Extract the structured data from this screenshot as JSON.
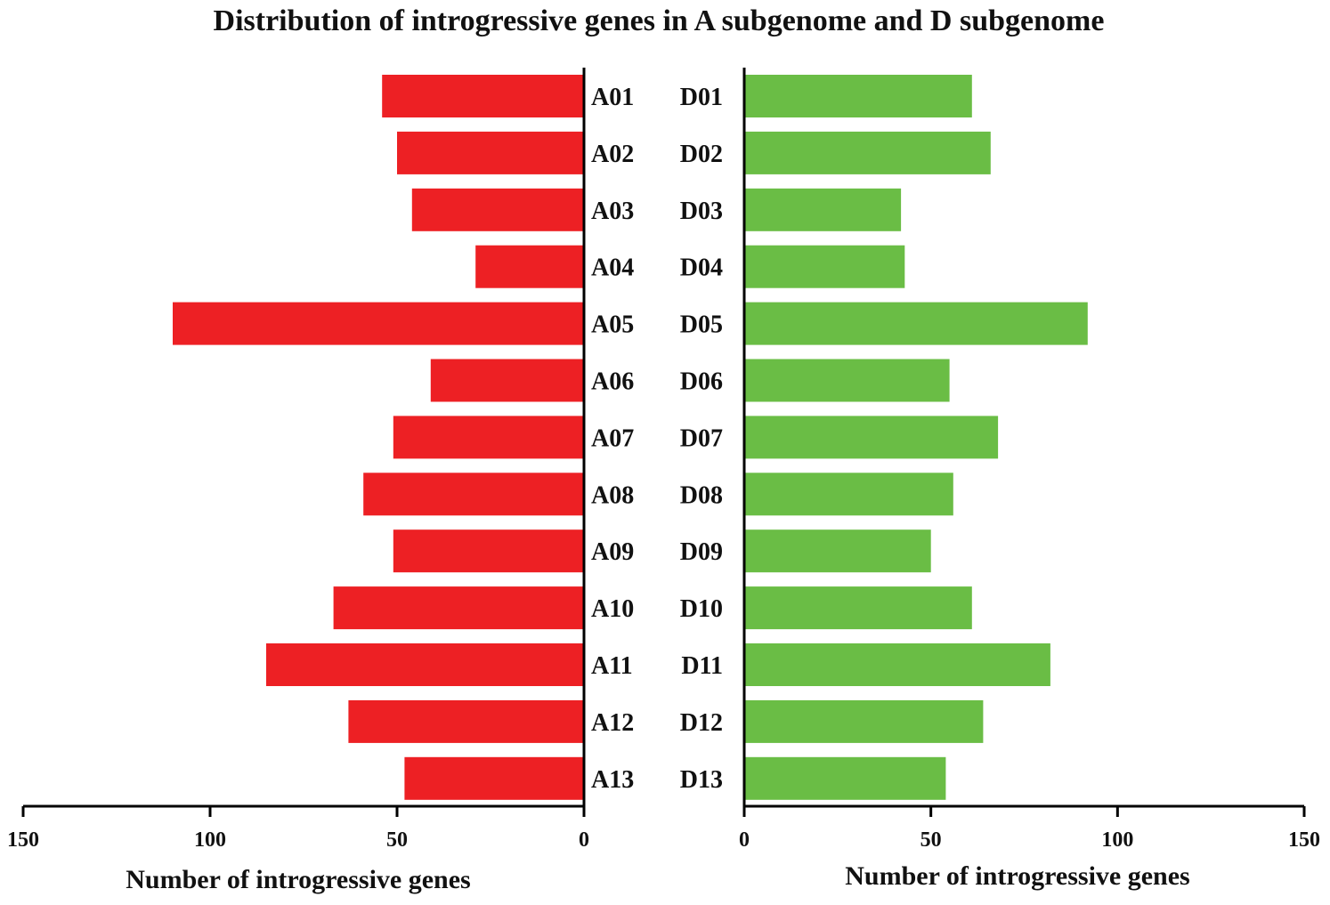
{
  "chart_data": [
    {
      "type": "bar",
      "orientation": "horizontal",
      "direction": "left",
      "title": "Distribution of introgressive genes in A subgenome and D subgenome",
      "categories": [
        "A01",
        "A02",
        "A03",
        "A04",
        "A05",
        "A06",
        "A07",
        "A08",
        "A09",
        "A10",
        "A11",
        "A12",
        "A13"
      ],
      "values": [
        54,
        50,
        46,
        29,
        110,
        41,
        51,
        59,
        51,
        67,
        85,
        63,
        48
      ],
      "xlabel": "Number of introgressive genes",
      "ylabel": "",
      "xlim": [
        0,
        150
      ],
      "ticks": [
        "150",
        "100",
        "50",
        "0"
      ],
      "color": "#ed2024",
      "grid": false
    },
    {
      "type": "bar",
      "orientation": "horizontal",
      "direction": "right",
      "categories": [
        "D01",
        "D02",
        "D03",
        "D04",
        "D05",
        "D06",
        "D07",
        "D08",
        "D09",
        "D10",
        "D11",
        "D12",
        "D13"
      ],
      "values": [
        61,
        66,
        42,
        43,
        92,
        55,
        68,
        56,
        50,
        61,
        82,
        64,
        54
      ],
      "xlabel": "Number of introgressive genes",
      "ylabel": "",
      "xlim": [
        0,
        150
      ],
      "ticks": [
        "0",
        "50",
        "100",
        "150"
      ],
      "color": "#6abd45",
      "grid": false
    }
  ]
}
